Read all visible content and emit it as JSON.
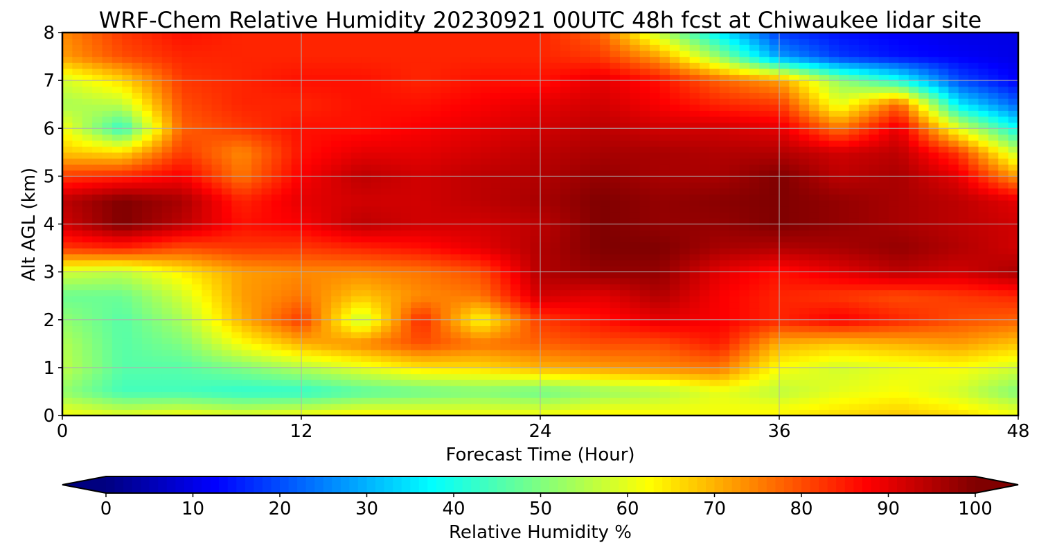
{
  "chart_data": {
    "type": "heatmap",
    "title": "WRF-Chem Relative Humidity 20230921 00UTC 48h fcst at Chiwaukee lidar site",
    "xlabel": "Forecast Time (Hour)",
    "ylabel": "Alt AGL (km)",
    "xlim": [
      0,
      48
    ],
    "ylim": [
      0,
      8
    ],
    "x_ticks": [
      "0",
      "12",
      "24",
      "36",
      "48"
    ],
    "y_ticks": [
      "0",
      "1",
      "2",
      "3",
      "4",
      "5",
      "6",
      "7",
      "8"
    ],
    "grid": true,
    "x": [
      0,
      3,
      6,
      9,
      12,
      15,
      18,
      21,
      24,
      27,
      30,
      33,
      36,
      39,
      42,
      45,
      48
    ],
    "y": [
      0,
      0.5,
      1,
      1.5,
      2,
      2.5,
      3,
      3.5,
      4,
      4.5,
      5,
      5.5,
      6,
      6.5,
      7,
      7.5,
      8
    ],
    "z": [
      [
        62,
        60,
        62,
        60,
        62,
        64,
        63,
        62,
        62,
        64,
        63,
        62,
        64,
        66,
        68,
        66,
        62
      ],
      [
        52,
        44,
        44,
        42,
        42,
        46,
        48,
        50,
        48,
        52,
        55,
        60,
        56,
        60,
        62,
        58,
        50
      ],
      [
        56,
        46,
        46,
        50,
        55,
        60,
        65,
        66,
        70,
        72,
        74,
        76,
        62,
        58,
        60,
        62,
        58
      ],
      [
        55,
        46,
        50,
        62,
        70,
        74,
        80,
        76,
        78,
        80,
        80,
        85,
        70,
        68,
        70,
        72,
        68
      ],
      [
        52,
        46,
        54,
        70,
        82,
        56,
        84,
        62,
        82,
        86,
        90,
        88,
        84,
        88,
        84,
        80,
        78
      ],
      [
        48,
        48,
        58,
        72,
        76,
        68,
        74,
        76,
        92,
        90,
        95,
        88,
        84,
        82,
        80,
        82,
        84
      ],
      [
        58,
        56,
        64,
        72,
        74,
        74,
        76,
        80,
        95,
        98,
        98,
        90,
        86,
        90,
        94,
        92,
        96
      ],
      [
        82,
        84,
        80,
        82,
        82,
        84,
        86,
        90,
        95,
        100,
        100,
        96,
        95,
        96,
        98,
        95,
        92
      ],
      [
        92,
        100,
        94,
        86,
        88,
        94,
        92,
        92,
        94,
        100,
        98,
        98,
        100,
        98,
        96,
        94,
        92
      ],
      [
        94,
        100,
        96,
        84,
        90,
        92,
        92,
        94,
        96,
        100,
        98,
        99,
        100,
        98,
        96,
        94,
        90
      ],
      [
        82,
        84,
        88,
        76,
        88,
        94,
        92,
        94,
        95,
        98,
        96,
        96,
        100,
        94,
        96,
        90,
        72
      ],
      [
        68,
        66,
        82,
        74,
        86,
        90,
        90,
        92,
        94,
        96,
        96,
        95,
        95,
        92,
        94,
        82,
        56
      ],
      [
        62,
        42,
        78,
        82,
        86,
        86,
        88,
        90,
        92,
        94,
        92,
        92,
        90,
        76,
        90,
        60,
        38
      ],
      [
        54,
        56,
        80,
        84,
        84,
        86,
        86,
        88,
        90,
        92,
        88,
        84,
        82,
        60,
        78,
        36,
        22
      ],
      [
        58,
        66,
        82,
        84,
        86,
        86,
        84,
        86,
        86,
        90,
        86,
        78,
        72,
        52,
        40,
        20,
        12
      ],
      [
        72,
        80,
        84,
        84,
        84,
        84,
        84,
        84,
        84,
        82,
        72,
        52,
        28,
        18,
        14,
        12,
        10
      ],
      [
        74,
        82,
        86,
        84,
        84,
        84,
        84,
        84,
        84,
        78,
        56,
        36,
        18,
        14,
        12,
        10,
        10
      ]
    ],
    "colorbar": {
      "label": "Relative Humidity %",
      "ticks": [
        "0",
        "10",
        "20",
        "30",
        "40",
        "50",
        "60",
        "70",
        "80",
        "90",
        "100"
      ],
      "range": [
        0,
        100
      ],
      "colormap": "jet",
      "extend": "both"
    }
  }
}
